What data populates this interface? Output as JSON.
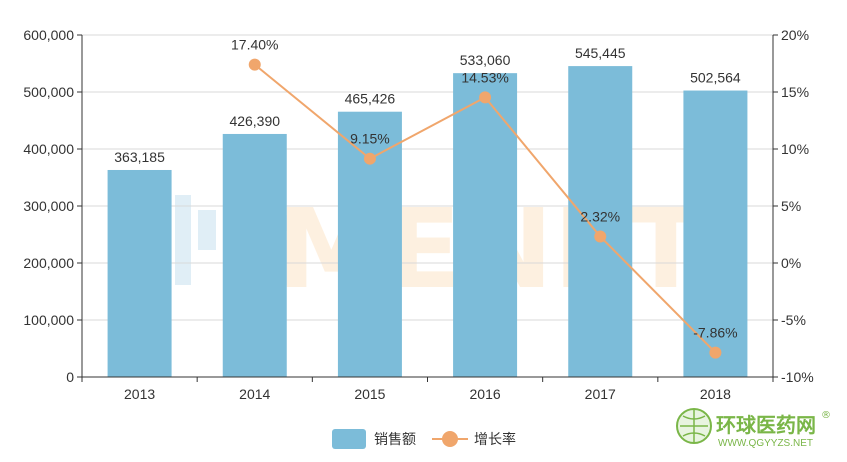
{
  "chart_data": {
    "type": "bar",
    "categories": [
      "2013",
      "2014",
      "2015",
      "2016",
      "2017",
      "2018"
    ],
    "series": [
      {
        "name": "销售额",
        "type": "bar",
        "axis": "left",
        "color": "#7cbcd9",
        "values": [
          363185,
          426390,
          465426,
          533060,
          545445,
          502564
        ],
        "labels": [
          "363,185",
          "426,390",
          "465,426",
          "533,060",
          "545,445",
          "502,564"
        ]
      },
      {
        "name": "增长率",
        "type": "line",
        "axis": "right",
        "color": "#f0a66c",
        "values": [
          null,
          17.4,
          9.15,
          14.53,
          2.32,
          -7.86
        ],
        "labels": [
          "",
          "17.40%",
          "9.15%",
          "14.53%",
          "2.32%",
          "-7.86%"
        ]
      }
    ],
    "y_left": {
      "min": 0,
      "max": 600000,
      "step": 100000,
      "ticks": [
        "0",
        "100,000",
        "200,000",
        "300,000",
        "400,000",
        "500,000",
        "600,000"
      ]
    },
    "y_right": {
      "min": -10,
      "max": 20,
      "step": 5,
      "ticks": [
        "-10%",
        "-5%",
        "0%",
        "5%",
        "10%",
        "15%",
        "20%"
      ]
    },
    "grid": true,
    "legend": "bottom-center"
  },
  "watermark": {
    "text": "MENET"
  },
  "logo": {
    "name": "环球医药网",
    "registered": "®",
    "url": "WWW.QGYYZS.NET"
  }
}
